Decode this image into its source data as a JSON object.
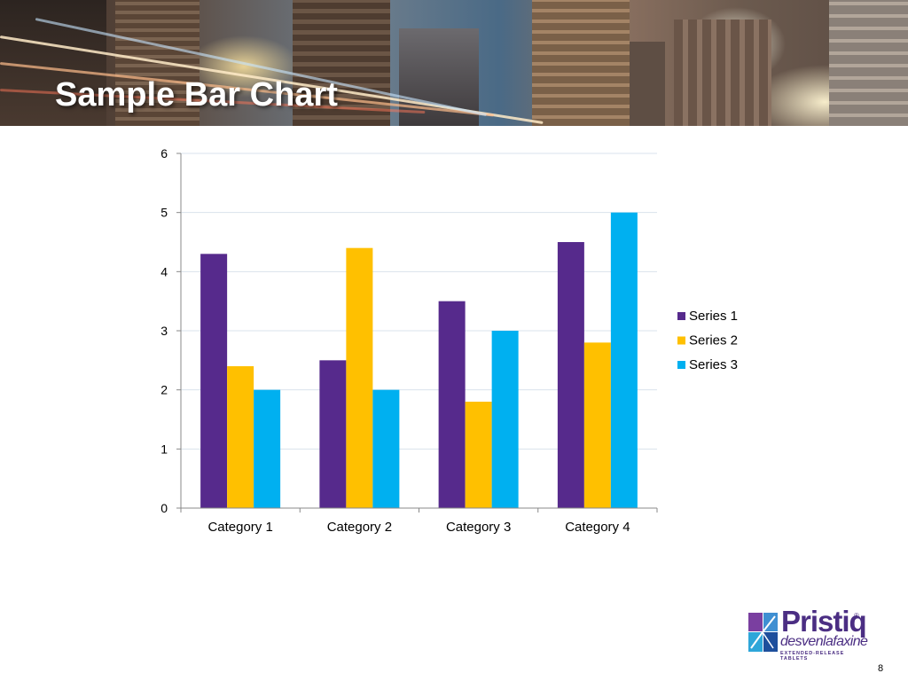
{
  "slide": {
    "title": "Sample Bar Chart",
    "page_number": "8"
  },
  "logo": {
    "brand": "Pristiq",
    "registered": "®",
    "generic": "desvenlafaxine",
    "tagline": "EXTENDED-RELEASE TABLETS"
  },
  "colors": {
    "series1": "#562A8C",
    "series2": "#FFC000",
    "series3": "#00B0F0",
    "grid": "#D9E3EC",
    "axis": "#888888"
  },
  "chart_data": {
    "type": "bar",
    "categories": [
      "Category 1",
      "Category 2",
      "Category 3",
      "Category 4"
    ],
    "series": [
      {
        "name": "Series 1",
        "values": [
          4.3,
          2.5,
          3.5,
          4.5
        ]
      },
      {
        "name": "Series 2",
        "values": [
          2.4,
          4.4,
          1.8,
          2.8
        ]
      },
      {
        "name": "Series 3",
        "values": [
          2,
          2,
          3,
          5
        ]
      }
    ],
    "title": "",
    "xlabel": "",
    "ylabel": "",
    "ylim": [
      0,
      6
    ],
    "yticks": [
      "0",
      "1",
      "2",
      "3",
      "4",
      "5",
      "6"
    ],
    "grid": true,
    "legend": "right"
  }
}
